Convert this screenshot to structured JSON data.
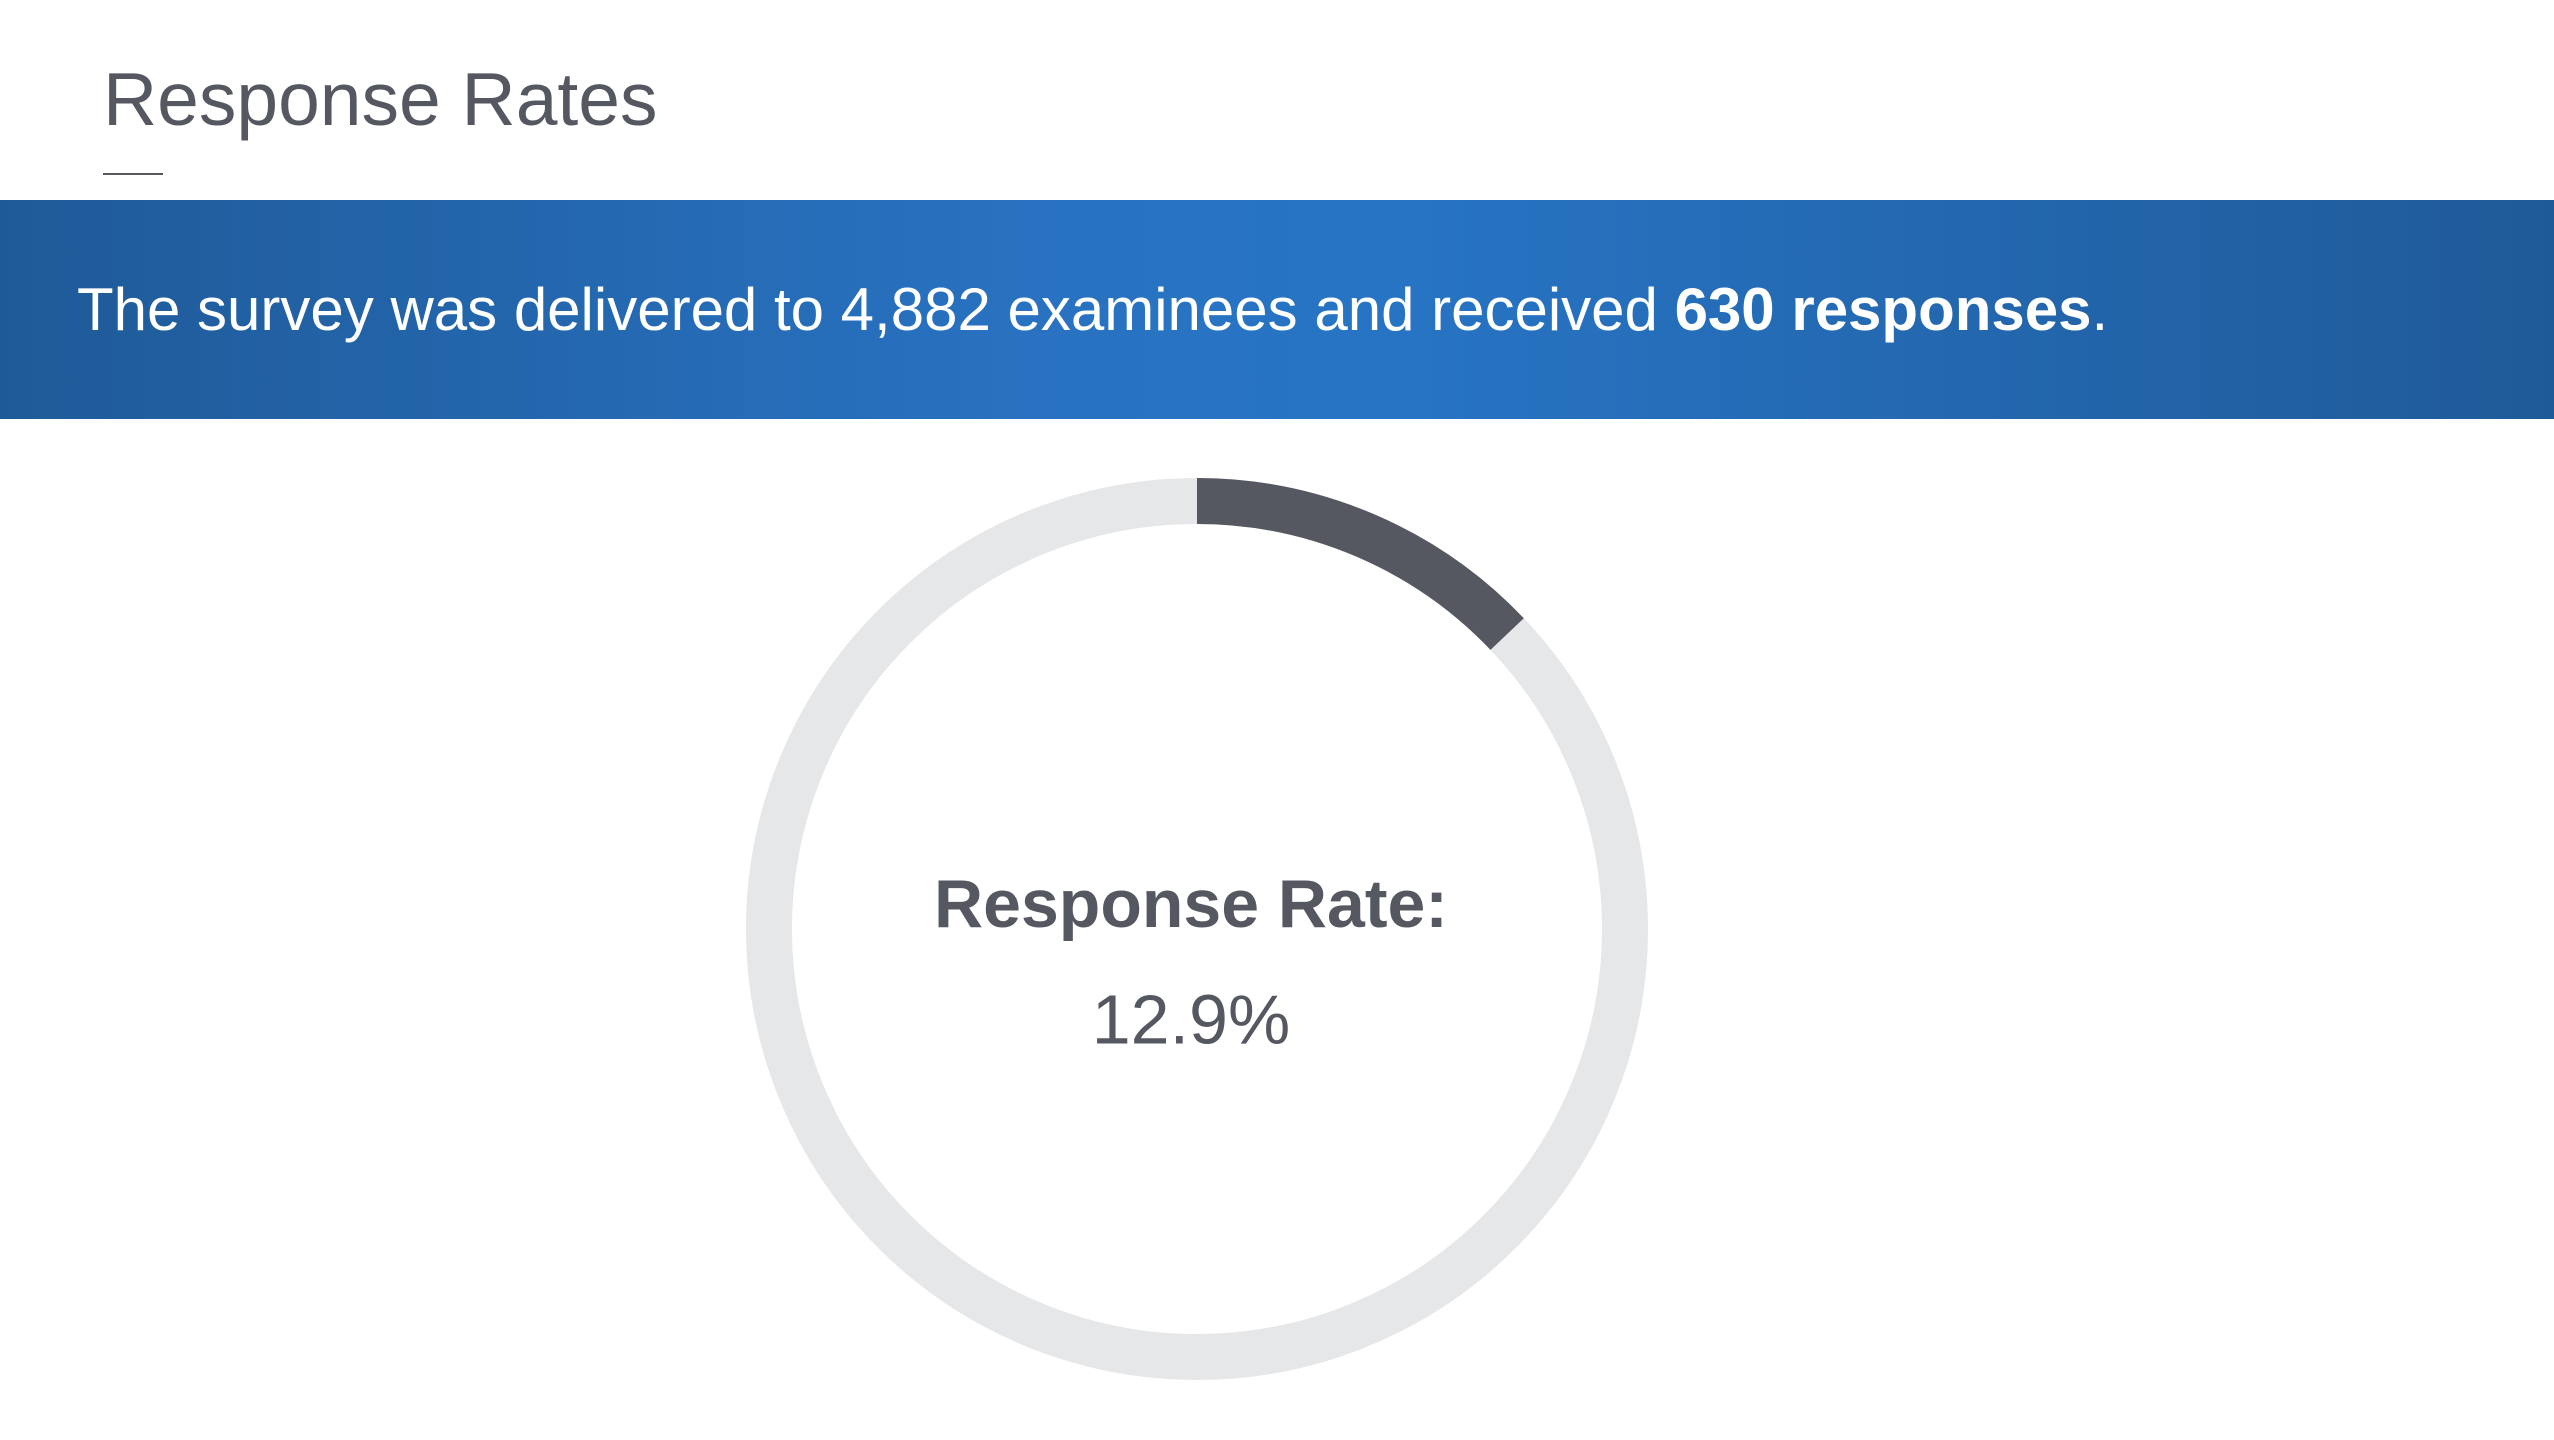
{
  "title": "Response Rates",
  "banner": {
    "parts": [
      "The survey was delivered to 4,882 examinees and received ",
      "630 responses",
      "."
    ]
  },
  "chart_data": {
    "type": "donut",
    "label": "Response Rate:",
    "values": [
      12.9
    ],
    "value_labels": [
      "12.9%"
    ],
    "color": "#555761",
    "track_color": "#e6e7e9"
  }
}
